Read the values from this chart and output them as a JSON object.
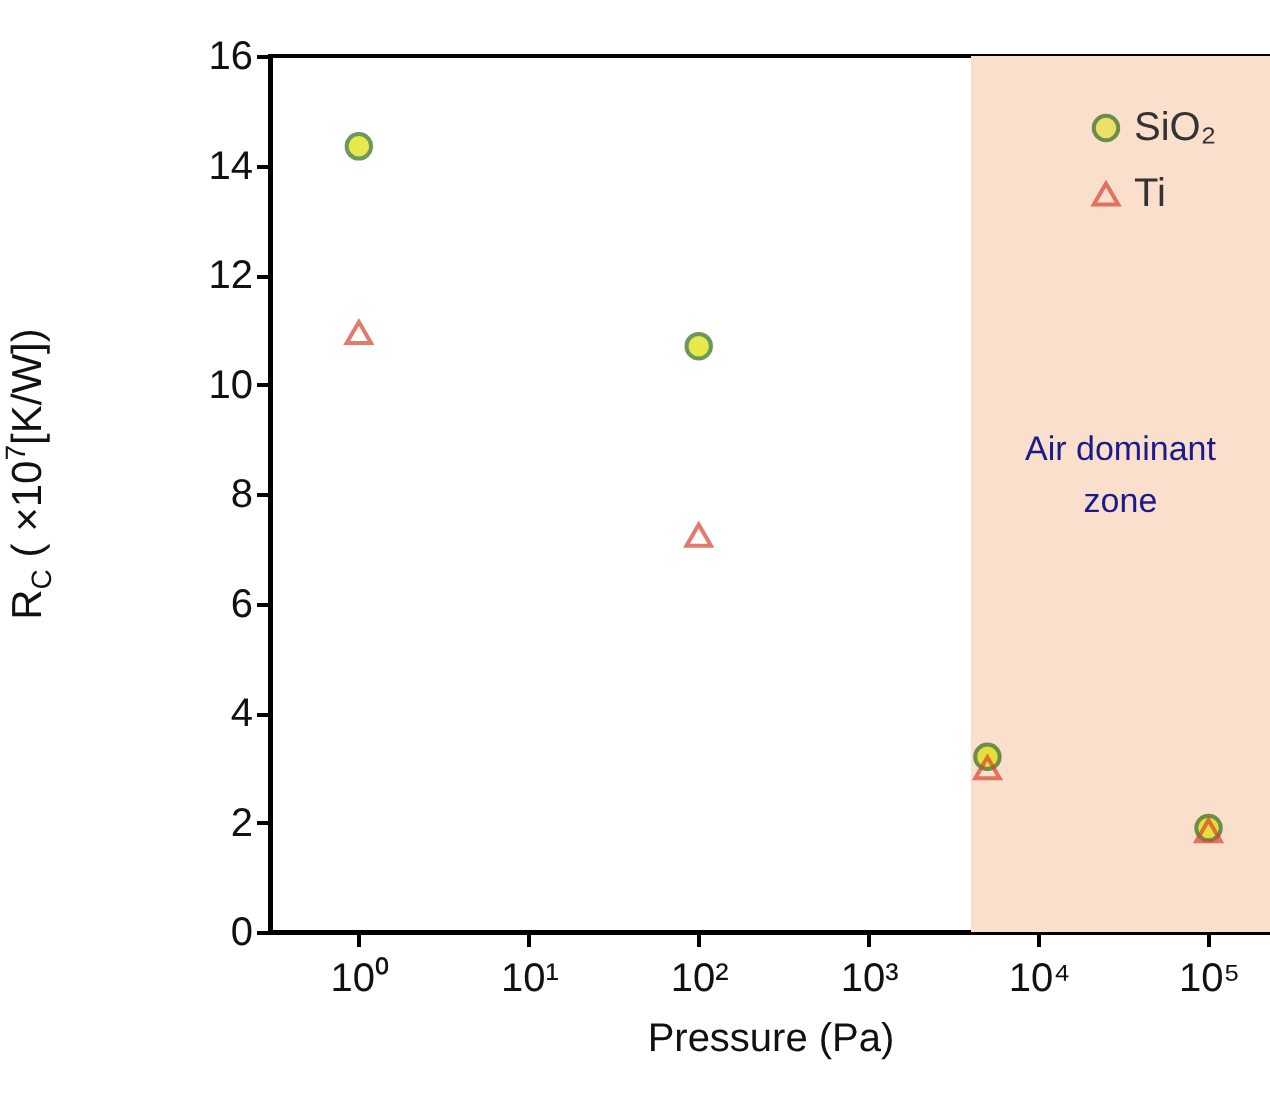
{
  "chart_data": {
    "type": "scatter",
    "xlabel": "Pressure (Pa)",
    "ylabel": "R$_{C}$ ( ×10$^{7}$[K/W])",
    "log": "x",
    "x": [
      1,
      100,
      5000,
      100000
    ],
    "series": [
      {
        "name": "SiO₂",
        "color": "#dce000",
        "marker": "circle",
        "values": [
          14.35,
          10.7,
          3.2,
          1.9
        ]
      },
      {
        "name": "Ti",
        "color": "#d9432f",
        "marker": "triangle",
        "values": [
          10.95,
          7.25,
          3.0,
          1.85
        ]
      }
    ],
    "xlim": [
      0.3,
      230000
    ],
    "xticks": [
      {
        "value": 1,
        "label": "10⁰"
      },
      {
        "value": 10,
        "label": "10¹"
      },
      {
        "value": 100,
        "label": "10²"
      },
      {
        "value": 1000,
        "label": "10³"
      },
      {
        "value": 10000,
        "label": "10⁴"
      },
      {
        "value": 100000,
        "label": "10⁵"
      }
    ],
    "ylim": [
      0,
      16
    ],
    "yticks": [
      0,
      2,
      4,
      6,
      8,
      10,
      12,
      14,
      16
    ],
    "bands": [
      {
        "axis": "x",
        "from": 4000,
        "to": 230000,
        "label": "Air dominant zone",
        "color": "#fadfcc"
      }
    ],
    "legend": "top right",
    "grid": false
  }
}
